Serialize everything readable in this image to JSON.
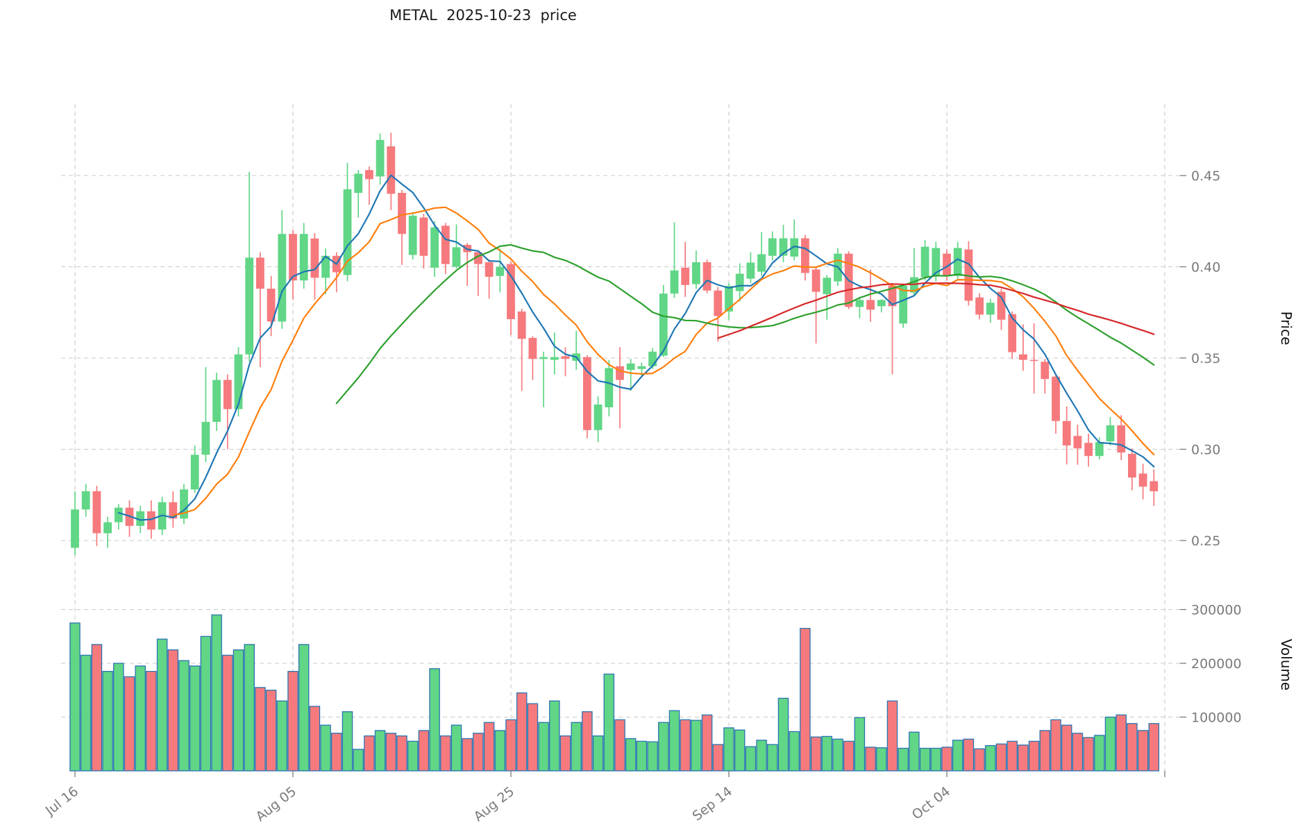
{
  "title": "METAL  2025-10-23  price",
  "axes": {
    "price_label": "Price",
    "volume_label": "Volume"
  },
  "colors": {
    "background": "#ffffff",
    "up": "#60d686",
    "down": "#f67a7d",
    "volume_edge": "#2a74b0",
    "grid": "#c9c9c9",
    "tick_label": "#7a7a7a",
    "text": "#1a1a1a",
    "ma_blue": "#1f77b4",
    "ma_orange": "#ff7f0e",
    "ma_green": "#2ca02c",
    "ma_red": "#d62728"
  },
  "chart_data": {
    "type": "candlestick",
    "symbol": "METAL",
    "as_of_date": "2025-10-23",
    "grid": true,
    "legend_position": "none",
    "price_axis": {
      "label": "Price",
      "ticks": [
        0.45,
        0.4,
        0.35,
        0.3,
        0.25
      ],
      "range": [
        0.231,
        0.489
      ]
    },
    "volume_axis": {
      "label": "Volume",
      "ticks": [
        300000,
        200000,
        100000
      ],
      "range": [
        0,
        385000
      ]
    },
    "x_axis": {
      "ticks": [
        {
          "index": 0,
          "label": "Jul 16"
        },
        {
          "index": 20,
          "label": "Aug 05"
        },
        {
          "index": 40,
          "label": "Aug 25"
        },
        {
          "index": 60,
          "label": "Sep 14"
        },
        {
          "index": 80,
          "label": "Oct 04"
        },
        {
          "index": 100,
          "label": ""
        }
      ]
    },
    "moving_averages": [
      {
        "name": "MA5",
        "window": 5,
        "color": "#1f77b4"
      },
      {
        "name": "MA10",
        "window": 10,
        "color": "#ff7f0e"
      },
      {
        "name": "MA25",
        "window": 25,
        "color": "#2ca02c"
      },
      {
        "name": "MA60",
        "window": 60,
        "color": "#d62728"
      }
    ],
    "dates": [
      "2025-07-16",
      "2025-07-17",
      "2025-07-18",
      "2025-07-19",
      "2025-07-20",
      "2025-07-21",
      "2025-07-22",
      "2025-07-23",
      "2025-07-24",
      "2025-07-25",
      "2025-07-26",
      "2025-07-27",
      "2025-07-28",
      "2025-07-29",
      "2025-07-30",
      "2025-07-31",
      "2025-08-01",
      "2025-08-02",
      "2025-08-03",
      "2025-08-04",
      "2025-08-05",
      "2025-08-06",
      "2025-08-07",
      "2025-08-08",
      "2025-08-09",
      "2025-08-10",
      "2025-08-11",
      "2025-08-12",
      "2025-08-13",
      "2025-08-14",
      "2025-08-15",
      "2025-08-16",
      "2025-08-17",
      "2025-08-18",
      "2025-08-19",
      "2025-08-20",
      "2025-08-21",
      "2025-08-22",
      "2025-08-23",
      "2025-08-24",
      "2025-08-25",
      "2025-08-26",
      "2025-08-27",
      "2025-08-28",
      "2025-08-29",
      "2025-08-30",
      "2025-08-31",
      "2025-09-01",
      "2025-09-02",
      "2025-09-03",
      "2025-09-04",
      "2025-09-05",
      "2025-09-06",
      "2025-09-07",
      "2025-09-08",
      "2025-09-09",
      "2025-09-10",
      "2025-09-11",
      "2025-09-12",
      "2025-09-13",
      "2025-09-14",
      "2025-09-15",
      "2025-09-16",
      "2025-09-17",
      "2025-09-18",
      "2025-09-19",
      "2025-09-20",
      "2025-09-21",
      "2025-09-22",
      "2025-09-23",
      "2025-09-24",
      "2025-09-25",
      "2025-09-26",
      "2025-09-27",
      "2025-09-28",
      "2025-09-29",
      "2025-09-30",
      "2025-10-01",
      "2025-10-02",
      "2025-10-03",
      "2025-10-04",
      "2025-10-05",
      "2025-10-06",
      "2025-10-07",
      "2025-10-08",
      "2025-10-09",
      "2025-10-10",
      "2025-10-11",
      "2025-10-12",
      "2025-10-13",
      "2025-10-14",
      "2025-10-15",
      "2025-10-16",
      "2025-10-17",
      "2025-10-18",
      "2025-10-19",
      "2025-10-20",
      "2025-10-21",
      "2025-10-22",
      "2025-10-23"
    ],
    "open": [
      0.246,
      0.267,
      0.277,
      0.254,
      0.26,
      0.268,
      0.258,
      0.266,
      0.256,
      0.271,
      0.262,
      0.278,
      0.297,
      0.315,
      0.338,
      0.322,
      0.352,
      0.405,
      0.388,
      0.37,
      0.418,
      0.3925,
      0.4155,
      0.394,
      0.406,
      0.3955,
      0.4405,
      0.453,
      0.4495,
      0.466,
      0.4405,
      0.4065,
      0.427,
      0.3995,
      0.4225,
      0.4,
      0.412,
      0.408,
      0.4025,
      0.395,
      0.4015,
      0.3755,
      0.361,
      0.3495,
      0.349,
      0.351,
      0.3485,
      0.3505,
      0.3105,
      0.323,
      0.3455,
      0.3435,
      0.344,
      0.3455,
      0.3513,
      0.3853,
      0.3995,
      0.3905,
      0.4025,
      0.387,
      0.3755,
      0.3867,
      0.3935,
      0.3973,
      0.406,
      0.4061,
      0.4056,
      0.4156,
      0.3985,
      0.385,
      0.392,
      0.4072,
      0.378,
      0.3818,
      0.3784,
      0.3897,
      0.3689,
      0.3859,
      0.3943,
      0.3947,
      0.4072,
      0.395,
      0.4095,
      0.3832,
      0.3738,
      0.3863,
      0.374,
      0.352,
      0.349,
      0.348,
      0.3398,
      0.3155,
      0.3073,
      0.3035,
      0.2963,
      0.3043,
      0.3131,
      0.2975,
      0.2867,
      0.2825
    ],
    "high": [
      0.277,
      0.281,
      0.28,
      0.263,
      0.27,
      0.272,
      0.269,
      0.272,
      0.274,
      0.277,
      0.281,
      0.302,
      0.345,
      0.342,
      0.341,
      0.356,
      0.452,
      0.408,
      0.395,
      0.431,
      0.42,
      0.424,
      0.4185,
      0.41,
      0.408,
      0.457,
      0.453,
      0.455,
      0.473,
      0.4735,
      0.442,
      0.43,
      0.429,
      0.425,
      0.424,
      0.4232,
      0.413,
      0.409,
      0.404,
      0.41,
      0.403,
      0.377,
      0.362,
      0.3535,
      0.364,
      0.356,
      0.365,
      0.3515,
      0.329,
      0.349,
      0.356,
      0.3495,
      0.3475,
      0.3555,
      0.39,
      0.4244,
      0.4137,
      0.409,
      0.404,
      0.389,
      0.391,
      0.4019,
      0.408,
      0.419,
      0.4194,
      0.423,
      0.426,
      0.4175,
      0.4,
      0.3955,
      0.4103,
      0.4085,
      0.3835,
      0.3985,
      0.3822,
      0.391,
      0.3905,
      0.4103,
      0.4147,
      0.4137,
      0.4095,
      0.4137,
      0.414,
      0.3855,
      0.3825,
      0.388,
      0.3755,
      0.3685,
      0.369,
      0.3495,
      0.341,
      0.3235,
      0.3135,
      0.3085,
      0.3065,
      0.3177,
      0.3187,
      0.3005,
      0.292,
      0.289
    ],
    "low": [
      0.242,
      0.263,
      0.247,
      0.246,
      0.256,
      0.252,
      0.254,
      0.251,
      0.253,
      0.257,
      0.259,
      0.276,
      0.293,
      0.31,
      0.3,
      0.318,
      0.348,
      0.345,
      0.362,
      0.366,
      0.382,
      0.388,
      0.382,
      0.385,
      0.386,
      0.392,
      0.427,
      0.434,
      0.445,
      0.431,
      0.401,
      0.404,
      0.399,
      0.3945,
      0.396,
      0.399,
      0.3895,
      0.384,
      0.3825,
      0.386,
      0.3625,
      0.332,
      0.338,
      0.323,
      0.341,
      0.34,
      0.3435,
      0.306,
      0.304,
      0.318,
      0.3115,
      0.332,
      0.3405,
      0.344,
      0.3505,
      0.383,
      0.3835,
      0.388,
      0.3855,
      0.359,
      0.371,
      0.381,
      0.391,
      0.395,
      0.4035,
      0.4025,
      0.4035,
      0.3925,
      0.358,
      0.371,
      0.3895,
      0.3768,
      0.3718,
      0.3699,
      0.375,
      0.341,
      0.3665,
      0.3845,
      0.3925,
      0.392,
      0.3925,
      0.3935,
      0.3787,
      0.3712,
      0.3693,
      0.3654,
      0.3495,
      0.343,
      0.3305,
      0.3305,
      0.3085,
      0.2917,
      0.2915,
      0.2905,
      0.2945,
      0.302,
      0.294,
      0.2775,
      0.2725,
      0.269
    ],
    "close": [
      0.267,
      0.277,
      0.254,
      0.26,
      0.268,
      0.258,
      0.266,
      0.256,
      0.271,
      0.262,
      0.278,
      0.297,
      0.315,
      0.338,
      0.322,
      0.352,
      0.405,
      0.388,
      0.37,
      0.418,
      0.3925,
      0.418,
      0.394,
      0.406,
      0.397,
      0.4425,
      0.451,
      0.448,
      0.4695,
      0.44,
      0.418,
      0.428,
      0.406,
      0.4216,
      0.4015,
      0.4107,
      0.408,
      0.4015,
      0.3945,
      0.4,
      0.3713,
      0.3605,
      0.3495,
      0.3505,
      0.3505,
      0.3495,
      0.3525,
      0.3105,
      0.3245,
      0.3445,
      0.338,
      0.347,
      0.3455,
      0.3535,
      0.3853,
      0.398,
      0.39,
      0.4025,
      0.387,
      0.373,
      0.3895,
      0.3962,
      0.4023,
      0.4069,
      0.4156,
      0.4156,
      0.4156,
      0.3966,
      0.3863,
      0.394,
      0.4072,
      0.378,
      0.3818,
      0.3765,
      0.3818,
      0.3784,
      0.3897,
      0.3943,
      0.411,
      0.4103,
      0.395,
      0.4103,
      0.3814,
      0.3738,
      0.3803,
      0.371,
      0.3532,
      0.349,
      0.3485,
      0.3385,
      0.3155,
      0.3021,
      0.3005,
      0.2963,
      0.3039,
      0.3131,
      0.2982,
      0.2845,
      0.2795,
      0.277
    ],
    "volume": [
      275000,
      215000,
      235000,
      185000,
      200000,
      175000,
      195000,
      185000,
      245000,
      225000,
      205000,
      195000,
      250000,
      290000,
      215000,
      225000,
      235000,
      155000,
      150000,
      130000,
      185000,
      235000,
      120000,
      85000,
      70000,
      110000,
      40000,
      65000,
      75000,
      70000,
      65000,
      55000,
      75000,
      190000,
      65000,
      85000,
      60000,
      70000,
      90000,
      75000,
      95000,
      145000,
      125000,
      90000,
      130000,
      65000,
      90000,
      110000,
      65000,
      180000,
      95000,
      60000,
      55000,
      54000,
      90000,
      112000,
      95000,
      94000,
      104000,
      49000,
      80000,
      76000,
      45000,
      57000,
      49000,
      135000,
      73000,
      265000,
      63000,
      64000,
      59000,
      55000,
      99000,
      44000,
      43000,
      130000,
      42000,
      72000,
      42000,
      42000,
      44000,
      57000,
      59000,
      41000,
      47000,
      50000,
      55000,
      48000,
      55000,
      75000,
      95000,
      85000,
      70000,
      62000,
      66000,
      100000,
      104000,
      88000,
      75000,
      88000
    ]
  }
}
